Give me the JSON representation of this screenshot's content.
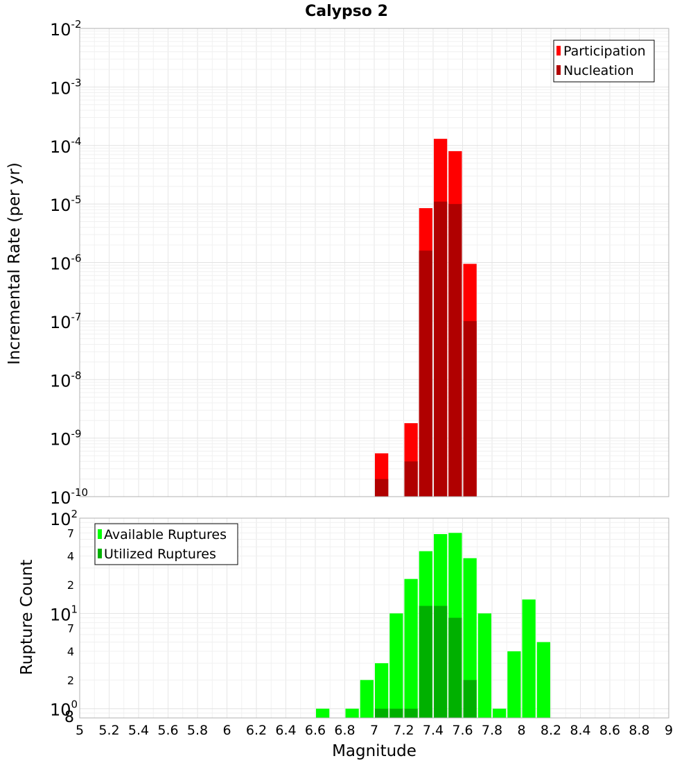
{
  "chart_data": [
    {
      "type": "bar",
      "title": "Calypso 2",
      "ylabel": "Incremental Rate (per yr)",
      "xlabel": "",
      "yscale": "log",
      "ylim": [
        1e-10,
        0.01
      ],
      "xlim": [
        5,
        9
      ],
      "bin_width": 0.1,
      "y_ticks": [
        {
          "mantissa": "10",
          "exp": "-10",
          "value": 1e-10
        },
        {
          "mantissa": "10",
          "exp": "-9",
          "value": 1e-09
        },
        {
          "mantissa": "10",
          "exp": "-8",
          "value": 1e-08
        },
        {
          "mantissa": "10",
          "exp": "-7",
          "value": 1e-07
        },
        {
          "mantissa": "10",
          "exp": "-6",
          "value": 1e-06
        },
        {
          "mantissa": "10",
          "exp": "-5",
          "value": 1e-05
        },
        {
          "mantissa": "10",
          "exp": "-4",
          "value": 0.0001
        },
        {
          "mantissa": "10",
          "exp": "-3",
          "value": 0.001
        },
        {
          "mantissa": "10",
          "exp": "-2",
          "value": 0.01
        }
      ],
      "legend": {
        "position": "top-right",
        "entries": [
          "Participation",
          "Nucleation"
        ]
      },
      "series": [
        {
          "name": "Participation",
          "color": "#ff0000",
          "points": [
            [
              7.05,
              5.5e-10
            ],
            [
              7.25,
              1.8e-09
            ],
            [
              7.35,
              8.5e-06
            ],
            [
              7.45,
              0.00013
            ],
            [
              7.55,
              8e-05
            ],
            [
              7.65,
              9.5e-07
            ]
          ]
        },
        {
          "name": "Nucleation",
          "color": "#b00000",
          "points": [
            [
              7.05,
              2e-10
            ],
            [
              7.25,
              4e-10
            ],
            [
              7.35,
              1.6e-06
            ],
            [
              7.45,
              1.1e-05
            ],
            [
              7.55,
              1e-05
            ],
            [
              7.65,
              1e-07
            ]
          ]
        }
      ]
    },
    {
      "type": "bar",
      "title": "",
      "ylabel": "Rupture Count",
      "xlabel": "Magnitude",
      "yscale": "log",
      "ylim": [
        0.8,
        100
      ],
      "xlim": [
        5,
        9
      ],
      "bin_width": 0.1,
      "y_ticks": [
        {
          "mantissa": "8",
          "exp": "",
          "value": 0.8
        },
        {
          "mantissa": "10",
          "exp": "0",
          "value": 1
        },
        {
          "mantissa": "2",
          "exp": "",
          "value": 2
        },
        {
          "mantissa": "4",
          "exp": "",
          "value": 4
        },
        {
          "mantissa": "7",
          "exp": "",
          "value": 7
        },
        {
          "mantissa": "10",
          "exp": "1",
          "value": 10
        },
        {
          "mantissa": "2",
          "exp": "",
          "value": 20
        },
        {
          "mantissa": "4",
          "exp": "",
          "value": 40
        },
        {
          "mantissa": "7",
          "exp": "",
          "value": 70
        },
        {
          "mantissa": "10",
          "exp": "2",
          "value": 100
        }
      ],
      "x_ticks": [
        "5",
        "5.2",
        "5.4",
        "5.6",
        "5.8",
        "6",
        "6.2",
        "6.4",
        "6.6",
        "6.8",
        "7",
        "7.2",
        "7.4",
        "7.6",
        "7.8",
        "8",
        "8.2",
        "8.4",
        "8.6",
        "8.8",
        "9"
      ],
      "legend": {
        "position": "top-left",
        "entries": [
          "Available Ruptures",
          "Utilized Ruptures"
        ]
      },
      "series": [
        {
          "name": "Available Ruptures",
          "color": "#00ff00",
          "points": [
            [
              6.65,
              1
            ],
            [
              6.85,
              1
            ],
            [
              6.95,
              2
            ],
            [
              7.05,
              3
            ],
            [
              7.15,
              10
            ],
            [
              7.25,
              23
            ],
            [
              7.35,
              45
            ],
            [
              7.45,
              68
            ],
            [
              7.55,
              70
            ],
            [
              7.65,
              38
            ],
            [
              7.75,
              10
            ],
            [
              7.85,
              1
            ],
            [
              7.95,
              4
            ],
            [
              8.05,
              14
            ],
            [
              8.15,
              5
            ]
          ]
        },
        {
          "name": "Utilized Ruptures",
          "color": "#00b000",
          "points": [
            [
              7.05,
              1
            ],
            [
              7.15,
              1
            ],
            [
              7.25,
              1
            ],
            [
              7.35,
              12
            ],
            [
              7.45,
              12
            ],
            [
              7.55,
              9
            ],
            [
              7.65,
              2
            ]
          ]
        }
      ]
    }
  ]
}
